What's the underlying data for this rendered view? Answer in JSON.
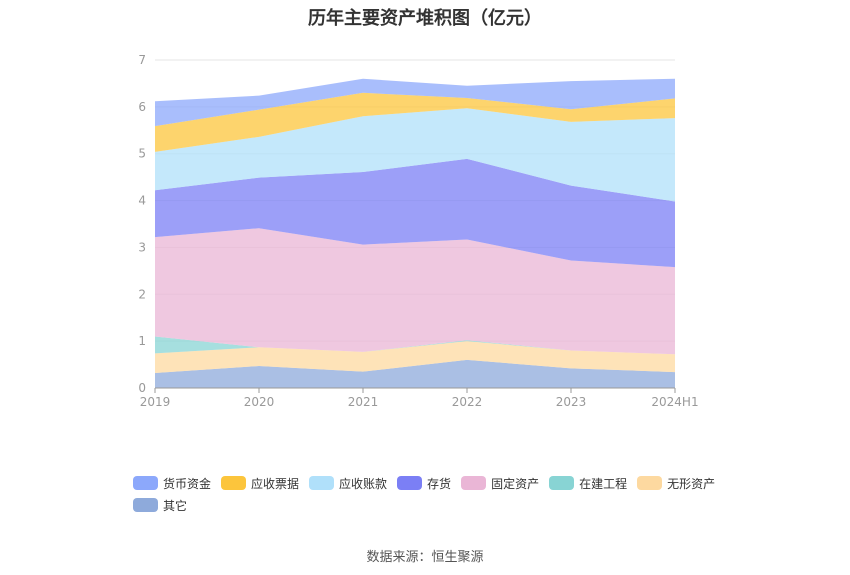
{
  "chart_data": {
    "type": "area",
    "stacked": true,
    "title": "历年主要资产堆积图（亿元）",
    "categories": [
      "2019",
      "2020",
      "2021",
      "2022",
      "2023",
      "2024H1"
    ],
    "ylim": [
      0,
      7
    ],
    "yticks": [
      "0",
      "1",
      "2",
      "3",
      "4",
      "5",
      "6",
      "7"
    ],
    "grid": true,
    "legend_position": "bottom-left",
    "series": [
      {
        "name": "其它",
        "color": "#8eaadb",
        "values": [
          0.32,
          0.47,
          0.35,
          0.6,
          0.42,
          0.34
        ]
      },
      {
        "name": "无形资产",
        "color": "#fdd9a0",
        "values": [
          0.42,
          0.4,
          0.42,
          0.4,
          0.38,
          0.38
        ]
      },
      {
        "name": "在建工程",
        "color": "#88d4d4",
        "values": [
          0.36,
          0.0,
          0.0,
          0.02,
          0.0,
          0.0
        ]
      },
      {
        "name": "固定资产",
        "color": "#eab6d6",
        "values": [
          2.12,
          2.54,
          2.29,
          2.15,
          1.92,
          1.86
        ]
      },
      {
        "name": "存货",
        "color": "#7b7ff5",
        "values": [
          1.0,
          1.08,
          1.55,
          1.72,
          1.6,
          1.4
        ]
      },
      {
        "name": "应收账款",
        "color": "#b0e0fa",
        "values": [
          0.82,
          0.87,
          1.19,
          1.08,
          1.36,
          1.78
        ]
      },
      {
        "name": "应收票据",
        "color": "#fcc53c",
        "values": [
          0.55,
          0.58,
          0.5,
          0.22,
          0.27,
          0.42
        ]
      },
      {
        "name": "货币资金",
        "color": "#8ca8fb",
        "values": [
          0.53,
          0.3,
          0.3,
          0.26,
          0.6,
          0.42
        ]
      }
    ]
  },
  "legend": [
    {
      "label": "货币资金",
      "color": "#8ca8fb"
    },
    {
      "label": "应收票据",
      "color": "#fcc53c"
    },
    {
      "label": "应收账款",
      "color": "#b0e0fa"
    },
    {
      "label": "存货",
      "color": "#7b7ff5"
    },
    {
      "label": "固定资产",
      "color": "#eab6d6"
    },
    {
      "label": "在建工程",
      "color": "#88d4d4"
    },
    {
      "label": "无形资产",
      "color": "#fdd9a0"
    },
    {
      "label": "其它",
      "color": "#8eaadb"
    }
  ],
  "source": "数据来源：恒生聚源"
}
